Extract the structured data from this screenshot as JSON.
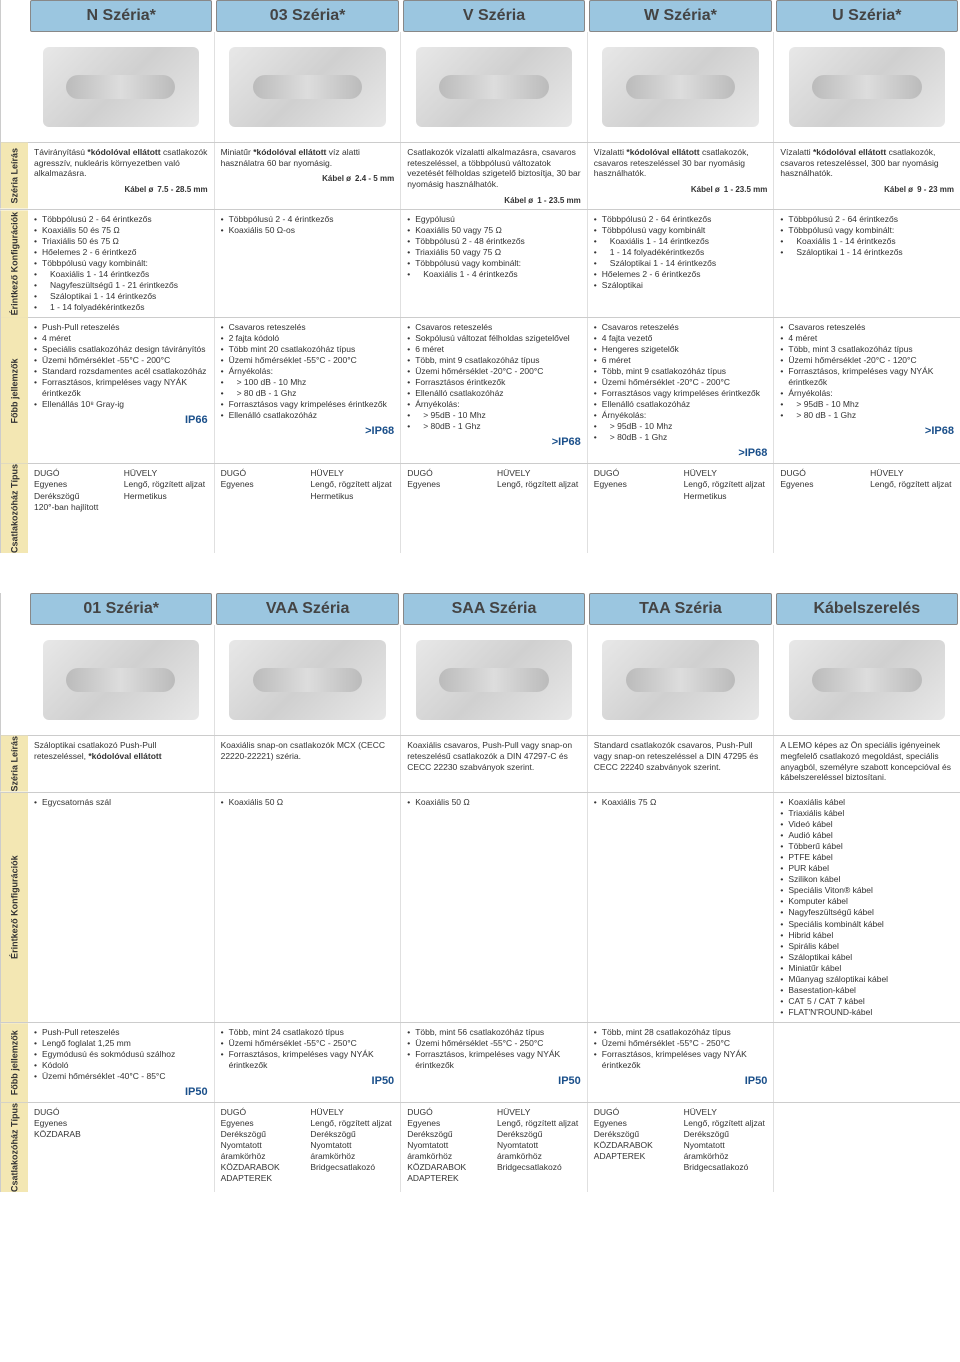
{
  "colors": {
    "header_bg": "#9bc6e0",
    "label_bg": "#f3e7b3",
    "ip_color": "#1a4f8a",
    "border": "#cccccc"
  },
  "labels": {
    "series_desc": "Széria\nLeírás",
    "contact_config": "Érintkező\nKonfigurációk",
    "main_features": "Főbb\njellemzők",
    "housing_type": "Csatlakozóház\nTípus"
  },
  "cable_label": "Kábel ø",
  "top": {
    "headers": [
      "N Széria*",
      "03 Széria*",
      "V Széria",
      "W Széria*",
      "U Széria*"
    ],
    "desc": [
      {
        "text": "Távirányítású *kódolóval ellátott csatlakozók agresszív, nukleáris környezetben való alkalmazásra.",
        "cable": "7.5 - 28.5 mm"
      },
      {
        "text": "Miniatűr *kódolóval ellátott víz alatti használatra 60 bar nyomásig.",
        "cable": "2.4 - 5 mm"
      },
      {
        "text": "Csatlakozók vízalatti alkalmazásra, csavaros reteszeléssel, a többpólusú változatok vezetését félholdas szigetelő biztosítja, 30 bar nyomásig használhatók.",
        "cable": "1 - 23.5 mm"
      },
      {
        "text": "Vízalatti *kódolóval ellátott csatlakozók, csavaros reteszeléssel 30 bar nyomásig használhatók.",
        "cable": "1 - 23.5 mm"
      },
      {
        "text": "Vízalatti *kódolóval ellátott csatlakozók, csavaros reteszeléssel, 300 bar nyomásig használhatók.",
        "cable": "9 - 23 mm"
      }
    ],
    "config": [
      [
        "Többpólusú 2 - 64 érintkezős",
        "Koaxiális 50 és 75 Ω",
        "Triaxiális 50 és 75 Ω",
        "Hőelemes 2 - 6 érintkező",
        "Többpólusú vagy kombinált:",
        "  Koaxiális 1 - 14 érintkezős",
        "  Nagyfeszültségű 1 - 21 érintkezős",
        "  Száloptikai 1 - 14 érintkezős",
        "  1 - 14 folyadékérintkezős"
      ],
      [
        "Többpólusú 2 - 4 érintkezős",
        "Koaxiális 50 Ω-os"
      ],
      [
        "Egypólusú",
        "Koaxiális 50 vagy 75 Ω",
        "Többpólusú 2 - 48 érintkezős",
        "Triaxiális 50 vagy 75 Ω",
        "Többpólusú vagy kombinált:",
        "  Koaxiális 1 - 4 érintkezős"
      ],
      [
        "Többpólusú 2 - 64 érintkezős",
        "Többpólusú vagy kombinált",
        "  Koaxiális 1 - 14 érintkezős",
        "  1 - 14 folyadékérintkezős",
        "  Száloptikai 1 - 14 érintkezős",
        "Hőelemes 2 - 6 érintkezős",
        "Száloptikai"
      ],
      [
        "Többpólusú 2 - 64 érintkezős",
        "Többpólusú vagy kombinált:",
        "  Koaxiális 1 - 14 érintkezős",
        "  Száloptikai 1 - 14 érintkezős"
      ]
    ],
    "features": [
      {
        "items": [
          "Push-Pull reteszelés",
          "4 méret",
          "Speciális csatlakozóház design távirányítós",
          "Üzemi hőmérséklet -55°C - 200°C",
          "Standard rozsdamentes acél csatlakozóház",
          "Forrasztásos, krimpeléses vagy NYÁK érintkezők",
          "Ellenállás 10⁸ Gray-ig"
        ],
        "ip": "IP66"
      },
      {
        "items": [
          "Csavaros reteszelés",
          "2 fajta kódoló",
          "Több mint 20 csatlakozóház típus",
          "Üzemi hőmérséklet -55°C - 200°C",
          "Árnyékolás:",
          "  > 100 dB - 10 Mhz",
          "  > 80 dB - 1 Ghz",
          "Forrasztásos vagy krimpeléses érintkezők",
          "Ellenálló csatlakozóház"
        ],
        "ip": ">IP68"
      },
      {
        "items": [
          "Csavaros reteszelés",
          "Sokpólusú változat félholdas szigetelővel",
          "6 méret",
          "Több, mint 9 csatlakozóház típus",
          "Üzemi hőmérséklet -20°C - 200°C",
          "Forrasztásos érintkezők",
          "Ellenálló csatlakozóház",
          "Árnyékolás:",
          "  > 95dB - 10 Mhz",
          "  > 80dB - 1 Ghz"
        ],
        "ip": ">IP68"
      },
      {
        "items": [
          "Csavaros reteszelés",
          "4 fajta vezető",
          "Hengeres szigetelők",
          "6 méret",
          "Több, mint 9 csatlakozóház típus",
          "Üzemi hőmérséklet -20°C - 200°C",
          "Forrasztásos vagy krimpeléses érintkezők",
          "Ellenálló csatlakozóház",
          "Árnyékolás:",
          "  > 95dB - 10 Mhz",
          "  > 80dB - 1 Ghz"
        ],
        "ip": ">IP68"
      },
      {
        "items": [
          "Csavaros reteszelés",
          "4 méret",
          "Több, mint 3 csatlakozóház típus",
          "Üzemi hőmérséklet -20°C - 120°C",
          "Forrasztásos, krimpeléses vagy NYÁK érintkezők",
          "Árnyékolás:",
          "  > 95dB - 10 Mhz",
          "  > 80 dB - 1 Ghz"
        ],
        "ip": ">IP68"
      }
    ],
    "housing": [
      {
        "plug": [
          "DUGÓ",
          "Egyenes",
          "Derékszögű",
          "120°-ban hajlított"
        ],
        "socket": [
          "HÜVELY",
          "Lengő, rögzített aljzat",
          "Hermetikus"
        ]
      },
      {
        "plug": [
          "DUGÓ",
          "Egyenes"
        ],
        "socket": [
          "HÜVELY",
          "Lengő, rögzített aljzat",
          "Hermetikus"
        ]
      },
      {
        "plug": [
          "DUGÓ",
          "Egyenes"
        ],
        "socket": [
          "HÜVELY",
          "Lengő, rögzített aljzat"
        ]
      },
      {
        "plug": [
          "DUGÓ",
          "Egyenes"
        ],
        "socket": [
          "HÜVELY",
          "Lengő, rögzített aljzat",
          "Hermetikus"
        ]
      },
      {
        "plug": [
          "DUGÓ",
          "Egyenes"
        ],
        "socket": [
          "HÜVELY",
          "Lengő, rögzített aljzat"
        ]
      }
    ]
  },
  "bottom": {
    "headers": [
      "01 Széria*",
      "VAA Széria",
      "SAA Széria",
      "TAA Széria",
      "Kábelszerelés"
    ],
    "desc": [
      {
        "text": "Száloptikai csatlakozó Push-Pull reteszeléssel, *kódolóval ellátott"
      },
      {
        "text": "Koaxiális snap-on csatlakozók MCX (CECC 22220-22221) széria."
      },
      {
        "text": "Koaxiális csavaros, Push-Pull vagy snap-on reteszelésű csatlakozók a DIN 47297-C és CECC 22230 szabványok szerint."
      },
      {
        "text": "Standard csatlakozók csavaros, Push-Pull vagy snap-on reteszeléssel a DIN 47295 és CECC 22240 szabványok szerint."
      },
      {
        "text": "A LEMO képes az Ön speciális igényeinek megfelelő csatlakozó megoldást, speciális anyagból, személyre szabott koncepcióval és kábelszereléssel biztosítani."
      }
    ],
    "config": [
      [
        "Egycsatornás szál"
      ],
      [
        "Koaxiális 50 Ω"
      ],
      [
        "Koaxiális 50 Ω"
      ],
      [
        "Koaxiális 75 Ω"
      ],
      [
        "Koaxiális kábel",
        "Triaxiális kábel",
        "Videó kábel",
        "Audió kábel",
        "Többerű kábel",
        "PTFE kábel",
        "PUR kábel",
        "Szilikon kábel",
        "Speciális Viton® kábel",
        "Komputer kábel",
        "Nagyfeszültségű kábel",
        "Speciális kombinált kábel",
        "Hibrid kábel",
        "Spirális kábel",
        "Száloptikai kábel",
        "Miniatűr kábel",
        "Műanyag száloptikai kábel",
        "Basestation-kábel",
        "CAT 5 / CAT 7 kábel",
        "FLAT'N'ROUND-kábel"
      ]
    ],
    "features": [
      {
        "items": [
          "Push-Pull reteszelés",
          "Lengő foglalat 1,25 mm",
          "Egymódusú és sokmódusú szálhoz",
          "Kódoló",
          "Üzemi hőmérséklet -40°C - 85°C"
        ],
        "ip": "IP50"
      },
      {
        "items": [
          "Több, mint 24 csatlakozó típus",
          "Üzemi hőmérséklet -55°C - 250°C",
          "Forrasztásos, krimpeléses vagy NYÁK érintkezők"
        ],
        "ip": "IP50"
      },
      {
        "items": [
          "Több, mint 56 csatlakozóház típus",
          "Üzemi hőmérséklet -55°C - 250°C",
          "Forrasztásos, krimpeléses vagy NYÁK érintkezők"
        ],
        "ip": "IP50"
      },
      {
        "items": [
          "Több, mint 28 csatlakozóház típus",
          "Üzemi hőmérséklet -55°C - 250°C",
          "Forrasztásos, krimpeléses vagy NYÁK érintkezők"
        ],
        "ip": "IP50"
      },
      {
        "items": [],
        "ip": ""
      }
    ],
    "housing": [
      {
        "plug": [
          "DUGÓ",
          "Egyenes",
          "",
          "",
          "KÖZDARAB"
        ],
        "socket": []
      },
      {
        "plug": [
          "DUGÓ",
          "Egyenes",
          "Derékszögű",
          "Nyomtatott áramkörhöz",
          "KÖZDARABOK",
          "ADAPTEREK"
        ],
        "socket": [
          "HÜVELY",
          "Lengő, rögzített aljzat",
          "Derékszögű",
          "Nyomtatott áramkörhöz",
          "Bridgecsatlakozó"
        ]
      },
      {
        "plug": [
          "DUGÓ",
          "Egyenes",
          "Derékszögű",
          "Nyomtatott áramkörhöz",
          "KÖZDARABOK",
          "ADAPTEREK"
        ],
        "socket": [
          "HÜVELY",
          "Lengő, rögzített aljzat",
          "Derékszögű",
          "Nyomtatott áramkörhöz",
          "Bridgecsatlakozó"
        ]
      },
      {
        "plug": [
          "DUGÓ",
          "Egyenes",
          "Derékszögű",
          "",
          "KÖZDARABOK",
          "ADAPTEREK"
        ],
        "socket": [
          "HÜVELY",
          "Lengő, rögzített aljzat",
          "Derékszögű",
          "Nyomtatott áramkörhöz",
          "Bridgecsatlakozó"
        ]
      },
      {
        "plug": [],
        "socket": []
      }
    ]
  }
}
